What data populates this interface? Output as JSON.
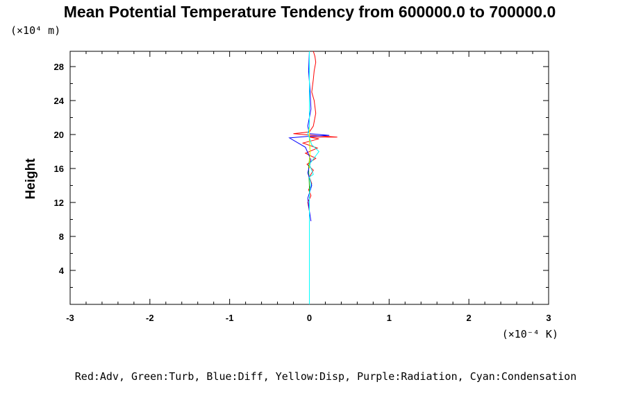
{
  "chart_data": {
    "type": "line",
    "title": "Mean Potential Temperature Tendency from 600000.0 to 700000.0",
    "ylabel": "Height",
    "y_units": "(×10⁴ m)",
    "x_units": "(×10⁻⁴ K)",
    "xlim": [
      -3,
      3
    ],
    "ylim": [
      0,
      29.8
    ],
    "x_ticks": [
      "-3",
      "-2",
      "-1",
      "0",
      "1",
      "2",
      "3"
    ],
    "y_ticks": [
      "4",
      "8",
      "12",
      "16",
      "20",
      "24",
      "28"
    ],
    "legend_text": "Red:Adv, Green:Turb, Blue:Diff, Yellow:Disp, Purple:Radiation, Cyan:Condensation",
    "series": [
      {
        "name": "Adv",
        "color": "#ff0000",
        "x": [
          0.0,
          0.0,
          -0.02,
          0.02,
          -0.01,
          0.03,
          0.0,
          0.05,
          -0.03,
          0.08,
          -0.05,
          0.1,
          -0.08,
          0.12,
          0.0,
          0.35,
          0.05,
          -0.2,
          0.0,
          0.05,
          0.08,
          0.06,
          0.03,
          0.05,
          0.06,
          0.08,
          0.07,
          0.05
        ],
        "y": [
          10.0,
          11.0,
          12.0,
          12.8,
          13.5,
          14.2,
          15.0,
          15.8,
          16.5,
          17.2,
          17.8,
          18.4,
          19.0,
          19.5,
          19.7,
          19.7,
          19.9,
          20.1,
          20.3,
          21.0,
          22.5,
          24.0,
          25.0,
          26.5,
          27.5,
          28.5,
          29.2,
          29.8
        ]
      },
      {
        "name": "Turb",
        "color": "#00aa00",
        "x": [
          0.0,
          0.0,
          -0.01,
          0.01,
          0.0,
          0.0,
          0.0
        ],
        "y": [
          12.0,
          14.0,
          16.0,
          18.0,
          19.5,
          20.5,
          22.0
        ]
      },
      {
        "name": "Diff",
        "color": "#0000ff",
        "x": [
          0.02,
          0.0,
          -0.02,
          0.03,
          -0.02,
          0.02,
          -0.05,
          -0.25,
          0.0,
          0.25,
          0.0,
          -0.02,
          0.02,
          0.01,
          -0.01,
          0.0
        ],
        "y": [
          9.8,
          11.0,
          12.5,
          14.0,
          15.5,
          17.0,
          18.5,
          19.6,
          19.8,
          19.9,
          20.1,
          21.0,
          23.0,
          25.0,
          27.5,
          29.8
        ]
      },
      {
        "name": "Disp",
        "color": "#ffff00",
        "x": [
          0.0,
          0.01,
          0.0,
          0.0
        ],
        "y": [
          16.0,
          18.0,
          20.0,
          22.0
        ]
      },
      {
        "name": "Condensation",
        "color": "#00ffff",
        "x": [
          0.0,
          0.0,
          0.0,
          0.02,
          0.0,
          0.05,
          0.0,
          0.12,
          0.03,
          0.0,
          -0.02,
          0.0,
          0.0
        ],
        "y": [
          0.0,
          10.0,
          13.0,
          14.2,
          15.0,
          15.3,
          16.5,
          18.0,
          18.8,
          19.6,
          20.0,
          21.0,
          29.8
        ]
      }
    ]
  }
}
